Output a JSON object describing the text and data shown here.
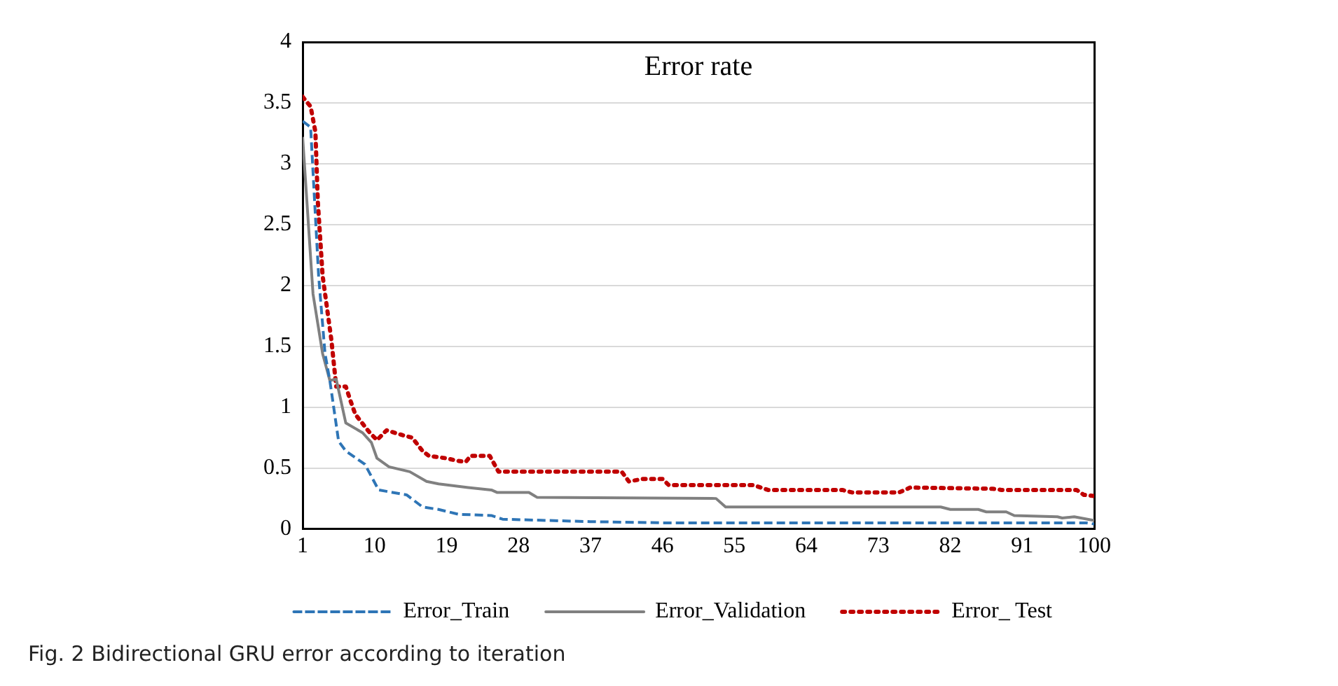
{
  "chart_data": {
    "type": "line",
    "title": "Error rate",
    "annotations": [
      "Fig. 2 Bidirectional GRU error according to iteration"
    ],
    "xlim": [
      1,
      100
    ],
    "xticks": [
      1,
      10,
      19,
      28,
      37,
      46,
      55,
      64,
      73,
      82,
      91,
      100
    ],
    "ylim": [
      0,
      4
    ],
    "yticks": [
      0,
      0.5,
      1,
      1.5,
      2,
      2.5,
      3,
      3.5,
      4
    ],
    "grid": "y",
    "legend": "bottom",
    "marker": "none",
    "series": [
      {
        "name": "Error_Train",
        "color": "#2e75b6",
        "line_style": "dashed",
        "x": [
          1,
          2,
          3,
          3.8,
          4.4,
          5.5,
          6.4,
          8.8,
          10.5,
          14,
          16,
          18,
          20.5,
          24.6,
          26,
          37,
          46,
          99,
          100
        ],
        "values": [
          3.35,
          3.3,
          2.08,
          1.44,
          1.22,
          0.72,
          0.64,
          0.53,
          0.32,
          0.28,
          0.18,
          0.16,
          0.12,
          0.11,
          0.08,
          0.06,
          0.05,
          0.05,
          0.04
        ]
      },
      {
        "name": "Error_Validation",
        "color": "#808080",
        "line_style": "solid",
        "x": [
          1,
          2.3,
          3.5,
          4.4,
          5.2,
          6.4,
          8.5,
          9.6,
          10.3,
          11.8,
          14.4,
          16.5,
          18,
          21.7,
          24.6,
          25.3,
          29.3,
          30.3,
          52.7,
          53.9,
          80.8,
          82,
          85.5,
          86.5,
          89,
          90,
          95.4,
          96,
          97.5,
          100
        ],
        "values": [
          3.22,
          1.93,
          1.44,
          1.22,
          1.23,
          0.87,
          0.79,
          0.71,
          0.58,
          0.51,
          0.47,
          0.39,
          0.37,
          0.34,
          0.32,
          0.3,
          0.3,
          0.26,
          0.25,
          0.18,
          0.18,
          0.16,
          0.16,
          0.14,
          0.14,
          0.11,
          0.1,
          0.09,
          0.1,
          0.07
        ]
      },
      {
        "name": "Error_ Test",
        "color": "#c00000",
        "line_style": "dotted",
        "x": [
          1,
          2,
          2.6,
          2.9,
          3.5,
          4.6,
          5.2,
          6.4,
          7,
          7.6,
          9.4,
          10.3,
          11.5,
          13.5,
          14.7,
          16,
          16.8,
          19,
          20.3,
          21.4,
          22,
          24.4,
          25.5,
          40.9,
          41.8,
          43.5,
          46,
          46.8,
          57.4,
          59.2,
          68.5,
          69.7,
          75.6,
          77,
          87.3,
          88.4,
          97.8,
          98.7,
          100
        ],
        "values": [
          3.55,
          3.47,
          3.26,
          2.69,
          2.08,
          1.55,
          1.17,
          1.17,
          1.05,
          0.94,
          0.79,
          0.73,
          0.81,
          0.77,
          0.75,
          0.64,
          0.6,
          0.58,
          0.56,
          0.55,
          0.6,
          0.6,
          0.47,
          0.47,
          0.39,
          0.41,
          0.41,
          0.36,
          0.36,
          0.32,
          0.32,
          0.3,
          0.3,
          0.34,
          0.33,
          0.32,
          0.32,
          0.28,
          0.27
        ]
      }
    ]
  }
}
